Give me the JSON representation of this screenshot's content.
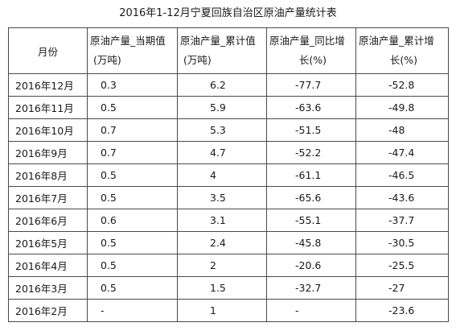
{
  "title": "2016年1-12月宁夏回族自治区原油产量统计表",
  "headers": {
    "month": "月份",
    "current": [
      "原油产量_当期值",
      "(万吨)"
    ],
    "cumulative": [
      "原油产量_累计值",
      "(万吨)"
    ],
    "yoy": [
      "原油产量_同比增",
      "长(%)"
    ],
    "cum_growth": [
      "原油产量_累计增",
      "长(%)"
    ]
  },
  "rows": [
    [
      "2016年12月",
      "0.3",
      "6.2",
      "-77.7",
      "-52.8"
    ],
    [
      "2016年11月",
      "0.5",
      "5.9",
      "-63.6",
      "-49.8"
    ],
    [
      "2016年10月",
      "0.7",
      "5.3",
      "-51.5",
      "-48"
    ],
    [
      "2016年9月",
      "0.7",
      "4.7",
      "-52.2",
      "-47.4"
    ],
    [
      "2016年8月",
      "0.5",
      "4",
      "-61.1",
      "-46.5"
    ],
    [
      "2016年7月",
      "0.5",
      "3.5",
      "-65.6",
      "-43.6"
    ],
    [
      "2016年6月",
      "0.6",
      "3.1",
      "-55.1",
      "-37.7"
    ],
    [
      "2016年5月",
      "0.5",
      "2.4",
      "-45.8",
      "-30.5"
    ],
    [
      "2016年4月",
      "0.5",
      "2",
      "-20.6",
      "-25.5"
    ],
    [
      "2016年3月",
      "0.5",
      "1.5",
      "-32.7",
      "-27"
    ],
    [
      "2016年2月",
      "-",
      "1",
      "-",
      "-23.6"
    ]
  ]
}
